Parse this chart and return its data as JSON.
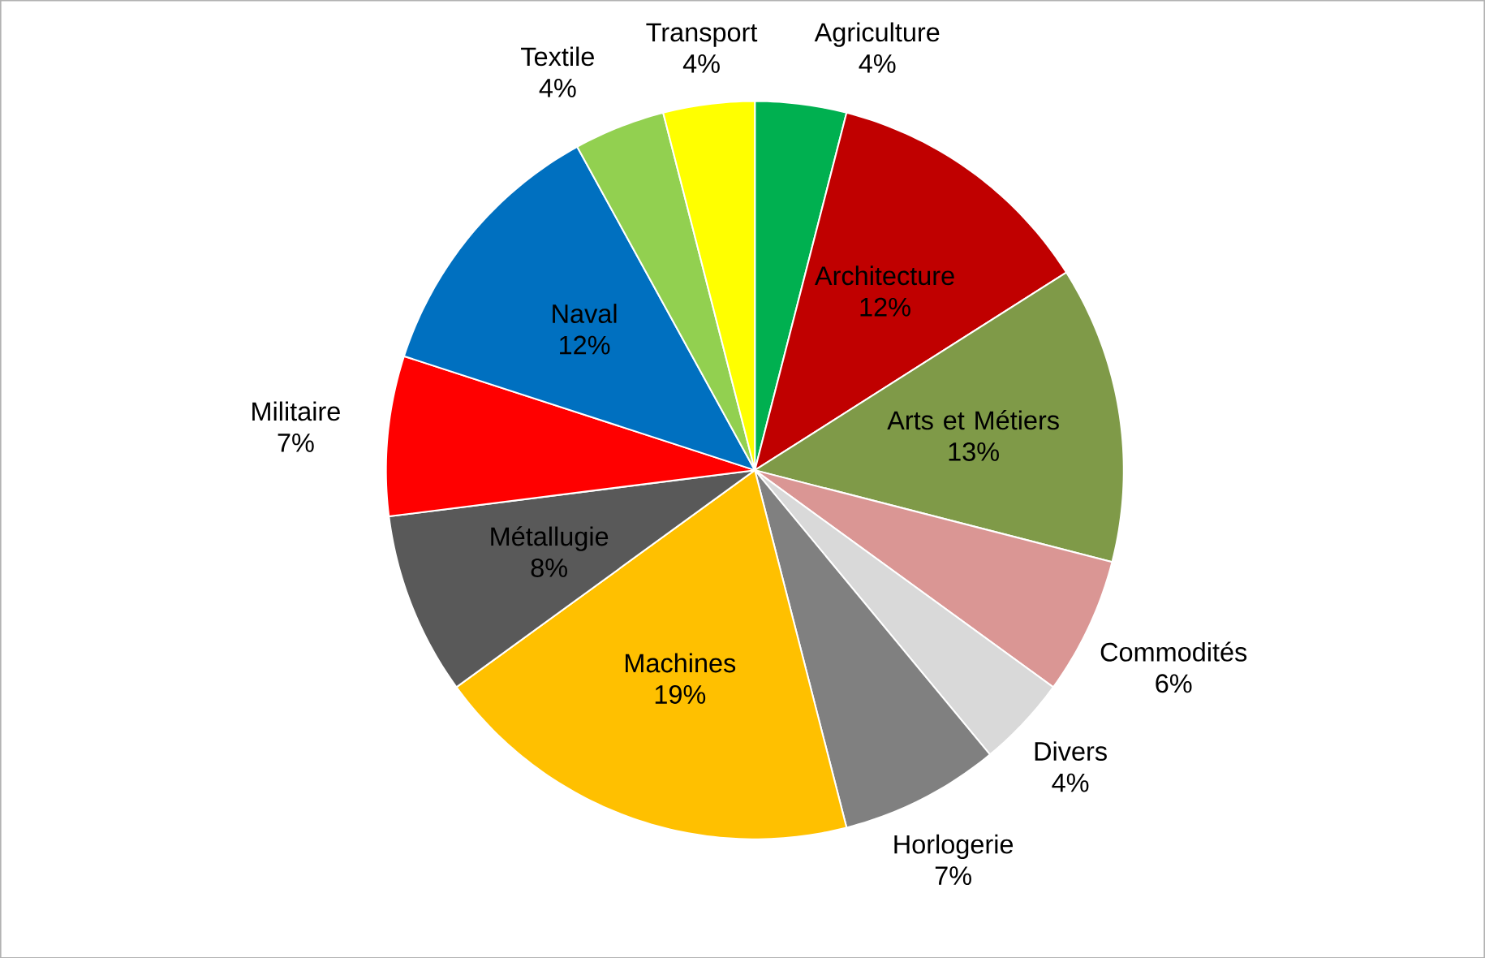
{
  "chart_data": {
    "type": "pie",
    "categories": [
      "Agriculture",
      "Architecture",
      "Arts et Métiers",
      "Commodités",
      "Divers",
      "Horlogerie",
      "Machines",
      "Métallugie",
      "Militaire",
      "Naval",
      "Textile",
      "Transport"
    ],
    "values": [
      4,
      12,
      13,
      6,
      4,
      7,
      19,
      8,
      7,
      12,
      4,
      4
    ],
    "value_labels": [
      "4%",
      "12%",
      "13%",
      "6%",
      "4%",
      "7%",
      "19%",
      "8%",
      "7%",
      "12%",
      "4%",
      "4%"
    ],
    "colors": [
      "#00b050",
      "#c00000",
      "#7f9a48",
      "#da9694",
      "#d9d9d9",
      "#808080",
      "#ffc000",
      "#595959",
      "#ff0000",
      "#0070c0",
      "#92d050",
      "#ffff00"
    ]
  }
}
